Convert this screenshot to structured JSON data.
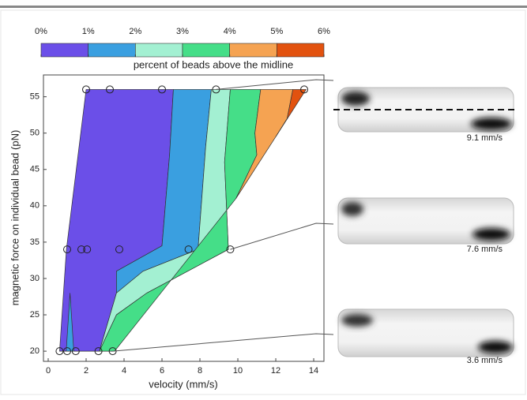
{
  "chart_data": {
    "type": "contour",
    "xlabel": "velocity (mm/s)",
    "ylabel": "magnetic force on individual bead (pN)",
    "xlim": [
      -0.25,
      14.54
    ],
    "ylim": [
      18.6,
      58
    ],
    "xticks": [
      0,
      2,
      4,
      6,
      8,
      10,
      12,
      14
    ],
    "yticks": [
      20,
      25,
      30,
      35,
      40,
      45,
      50,
      55
    ],
    "colorbar": {
      "label": "percent of beads above the midline",
      "ticks": [
        {
          "value": 0,
          "label": "0%"
        },
        {
          "value": 1,
          "label": "1%"
        },
        {
          "value": 2,
          "label": "2%"
        },
        {
          "value": 3,
          "label": "3%"
        },
        {
          "value": 4,
          "label": "4%"
        },
        {
          "value": 5,
          "label": "5%"
        },
        {
          "value": 6,
          "label": "6%"
        }
      ],
      "colors": [
        "#6b4fe8",
        "#3a9fe0",
        "#a3f0d2",
        "#45de88",
        "#f5a352",
        "#e2520f"
      ]
    },
    "regions": [
      {
        "color": "#6b4fe8",
        "x": [
          2.0,
          6.6,
          6.4,
          6.0,
          3.6,
          3.6,
          2.7,
          0.6,
          0.96
        ],
        "y": [
          56,
          56,
          47,
          34.5,
          31,
          28,
          20,
          20,
          34
        ]
      },
      {
        "color": "#3a9fe0",
        "x": [
          6.6,
          8.6,
          8.3,
          7.9,
          5.0,
          3.6,
          3.6,
          6.0,
          6.4
        ],
        "y": [
          56,
          56,
          48,
          34,
          31,
          28,
          31,
          34.5,
          47
        ]
      },
      {
        "color": "#3a9fe0",
        "x": [
          0.95,
          1.15,
          1.35
        ],
        "y": [
          20,
          28,
          20
        ]
      },
      {
        "color": "#a3f0d2",
        "x": [
          8.6,
          9.6,
          9.3,
          9.5,
          5.2,
          3.6,
          2.7,
          3.6,
          5.0,
          7.9,
          8.3
        ],
        "y": [
          56,
          56,
          46,
          34,
          28,
          25,
          20,
          28,
          31,
          34,
          48
        ]
      },
      {
        "color": "#45de88",
        "x": [
          9.6,
          11.2,
          10.9,
          11.0,
          9.9,
          3.5,
          2.7,
          3.6,
          5.2,
          9.5,
          9.3
        ],
        "y": [
          56,
          56,
          50,
          47,
          41,
          20,
          20,
          25,
          28,
          34,
          46
        ]
      },
      {
        "color": "#f5a352",
        "x": [
          11.2,
          12.9,
          12.6,
          12.0,
          9.9,
          11.0,
          10.9
        ],
        "y": [
          56,
          56,
          52,
          49.5,
          41,
          47,
          50
        ]
      },
      {
        "color": "#e2520f",
        "x": [
          12.9,
          13.6,
          12.0,
          12.6
        ],
        "y": [
          56,
          56,
          49.5,
          52
        ]
      }
    ],
    "points": {
      "x": [
        2.0,
        3.25,
        6.0,
        8.85,
        13.5,
        1.0,
        1.75,
        2.05,
        3.75,
        7.4,
        9.6,
        0.6,
        1.0,
        1.45,
        2.65,
        3.4
      ],
      "y": [
        56,
        56,
        56,
        56,
        56,
        34,
        34,
        34,
        34,
        34,
        34,
        20,
        20,
        20,
        20,
        20
      ]
    }
  },
  "panels": [
    {
      "label": "9.1 mm/s"
    },
    {
      "label": "7.6 mm/s"
    },
    {
      "label": "3.6 mm/s"
    }
  ]
}
